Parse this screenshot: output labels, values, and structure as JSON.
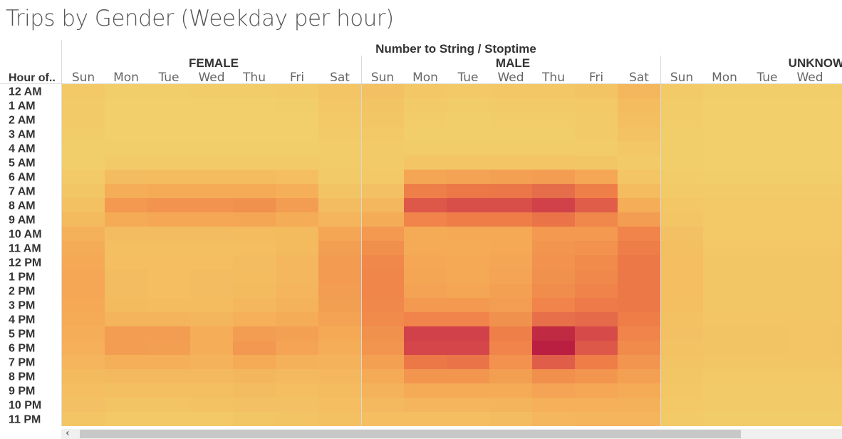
{
  "title": "Trips by Gender (Weekday per hour)",
  "header": {
    "column_field_label": "Number to String",
    "separator": "/",
    "column_field_label_2": "Stoptime",
    "row_field_label": "Hour of.."
  },
  "scroll": {
    "left_arrow": "‹"
  },
  "colors": {
    "scale_low": "#f2d06b",
    "scale_mid1": "#f5ab56",
    "scale_mid2": "#ef7f48",
    "scale_high1": "#d4464a",
    "scale_high2": "#b5173e",
    "panel_divider": "#d8d8d8"
  },
  "chart_data": {
    "type": "heatmap",
    "title": "Trips by Gender (Weekday per hour)",
    "xlabel": "Number to String / Stoptime",
    "ylabel": "Hour of..",
    "groups": [
      "FEMALE",
      "MALE",
      "UNKNOWN"
    ],
    "days": [
      "Sun",
      "Mon",
      "Tue",
      "Wed",
      "Thu",
      "Fri",
      "Sat"
    ],
    "hours": [
      "12 AM",
      "1 AM",
      "2 AM",
      "3 AM",
      "4 AM",
      "5 AM",
      "6 AM",
      "7 AM",
      "8 AM",
      "9 AM",
      "10 AM",
      "11 AM",
      "12 PM",
      "1 PM",
      "2 PM",
      "3 PM",
      "4 PM",
      "5 PM",
      "6 PM",
      "7 PM",
      "8 PM",
      "9 PM",
      "10 PM",
      "11 PM"
    ],
    "value_scale": [
      0,
      1
    ],
    "values": {
      "FEMALE": [
        [
          0.06,
          0.02,
          0.02,
          0.03,
          0.03,
          0.04,
          0.09
        ],
        [
          0.05,
          0.01,
          0.01,
          0.01,
          0.01,
          0.02,
          0.07
        ],
        [
          0.04,
          0.01,
          0.01,
          0.01,
          0.01,
          0.01,
          0.06
        ],
        [
          0.03,
          0.01,
          0.01,
          0.01,
          0.01,
          0.01,
          0.05
        ],
        [
          0.02,
          0.02,
          0.02,
          0.02,
          0.02,
          0.02,
          0.03
        ],
        [
          0.02,
          0.05,
          0.05,
          0.05,
          0.05,
          0.05,
          0.03
        ],
        [
          0.04,
          0.16,
          0.17,
          0.17,
          0.17,
          0.15,
          0.05
        ],
        [
          0.08,
          0.28,
          0.3,
          0.3,
          0.3,
          0.27,
          0.1
        ],
        [
          0.13,
          0.4,
          0.43,
          0.43,
          0.45,
          0.38,
          0.16
        ],
        [
          0.18,
          0.3,
          0.32,
          0.32,
          0.33,
          0.29,
          0.22
        ],
        [
          0.25,
          0.16,
          0.16,
          0.16,
          0.17,
          0.18,
          0.33
        ],
        [
          0.29,
          0.14,
          0.14,
          0.14,
          0.15,
          0.18,
          0.37
        ],
        [
          0.31,
          0.15,
          0.15,
          0.15,
          0.16,
          0.2,
          0.39
        ],
        [
          0.32,
          0.16,
          0.15,
          0.16,
          0.17,
          0.2,
          0.39
        ],
        [
          0.32,
          0.16,
          0.15,
          0.16,
          0.18,
          0.22,
          0.38
        ],
        [
          0.31,
          0.18,
          0.17,
          0.17,
          0.2,
          0.24,
          0.37
        ],
        [
          0.3,
          0.23,
          0.23,
          0.21,
          0.26,
          0.29,
          0.35
        ],
        [
          0.28,
          0.38,
          0.38,
          0.28,
          0.38,
          0.36,
          0.31
        ],
        [
          0.26,
          0.38,
          0.37,
          0.28,
          0.41,
          0.34,
          0.28
        ],
        [
          0.22,
          0.27,
          0.27,
          0.24,
          0.3,
          0.25,
          0.24
        ],
        [
          0.18,
          0.19,
          0.19,
          0.19,
          0.21,
          0.19,
          0.2
        ],
        [
          0.15,
          0.14,
          0.14,
          0.14,
          0.16,
          0.15,
          0.17
        ],
        [
          0.12,
          0.1,
          0.1,
          0.11,
          0.12,
          0.12,
          0.15
        ],
        [
          0.09,
          0.06,
          0.06,
          0.06,
          0.08,
          0.1,
          0.13
        ]
      ],
      "MALE": [
        [
          0.12,
          0.07,
          0.06,
          0.07,
          0.07,
          0.1,
          0.2
        ],
        [
          0.1,
          0.04,
          0.03,
          0.04,
          0.04,
          0.06,
          0.17
        ],
        [
          0.08,
          0.03,
          0.02,
          0.03,
          0.03,
          0.05,
          0.14
        ],
        [
          0.06,
          0.02,
          0.02,
          0.02,
          0.02,
          0.04,
          0.11
        ],
        [
          0.04,
          0.03,
          0.03,
          0.03,
          0.03,
          0.03,
          0.07
        ],
        [
          0.04,
          0.09,
          0.09,
          0.09,
          0.09,
          0.08,
          0.05
        ],
        [
          0.06,
          0.33,
          0.35,
          0.36,
          0.38,
          0.32,
          0.09
        ],
        [
          0.12,
          0.55,
          0.58,
          0.59,
          0.63,
          0.55,
          0.17
        ],
        [
          0.2,
          0.72,
          0.76,
          0.76,
          0.82,
          0.7,
          0.28
        ],
        [
          0.29,
          0.52,
          0.56,
          0.56,
          0.6,
          0.5,
          0.38
        ],
        [
          0.4,
          0.3,
          0.31,
          0.31,
          0.4,
          0.4,
          0.52
        ],
        [
          0.46,
          0.3,
          0.3,
          0.31,
          0.42,
          0.44,
          0.56
        ],
        [
          0.5,
          0.32,
          0.31,
          0.33,
          0.44,
          0.48,
          0.58
        ],
        [
          0.51,
          0.33,
          0.31,
          0.34,
          0.45,
          0.5,
          0.58
        ],
        [
          0.51,
          0.35,
          0.33,
          0.36,
          0.47,
          0.53,
          0.58
        ],
        [
          0.5,
          0.4,
          0.4,
          0.38,
          0.52,
          0.57,
          0.58
        ],
        [
          0.48,
          0.52,
          0.52,
          0.45,
          0.62,
          0.64,
          0.56
        ],
        [
          0.45,
          0.82,
          0.82,
          0.55,
          0.92,
          0.78,
          0.52
        ],
        [
          0.42,
          0.8,
          0.8,
          0.52,
          0.97,
          0.72,
          0.48
        ],
        [
          0.36,
          0.58,
          0.6,
          0.44,
          0.7,
          0.56,
          0.42
        ],
        [
          0.3,
          0.42,
          0.42,
          0.37,
          0.46,
          0.42,
          0.36
        ],
        [
          0.24,
          0.3,
          0.3,
          0.3,
          0.34,
          0.32,
          0.3
        ],
        [
          0.19,
          0.22,
          0.22,
          0.23,
          0.26,
          0.26,
          0.25
        ],
        [
          0.15,
          0.15,
          0.15,
          0.16,
          0.2,
          0.22,
          0.22
        ]
      ],
      "UNKNOWN": [
        [
          0.04,
          0.02,
          0.02,
          0.02,
          0.02
        ],
        [
          0.03,
          0.01,
          0.01,
          0.01,
          0.01
        ],
        [
          0.03,
          0.01,
          0.01,
          0.01,
          0.01
        ],
        [
          0.02,
          0.01,
          0.01,
          0.01,
          0.01
        ],
        [
          0.02,
          0.01,
          0.01,
          0.01,
          0.01
        ],
        [
          0.02,
          0.01,
          0.01,
          0.01,
          0.01
        ],
        [
          0.03,
          0.02,
          0.02,
          0.02,
          0.02
        ],
        [
          0.05,
          0.04,
          0.04,
          0.04,
          0.04
        ],
        [
          0.07,
          0.06,
          0.06,
          0.06,
          0.06
        ],
        [
          0.09,
          0.06,
          0.06,
          0.06,
          0.06
        ],
        [
          0.12,
          0.06,
          0.06,
          0.06,
          0.06
        ],
        [
          0.14,
          0.07,
          0.07,
          0.07,
          0.07
        ],
        [
          0.15,
          0.08,
          0.08,
          0.08,
          0.08
        ],
        [
          0.15,
          0.08,
          0.08,
          0.08,
          0.08
        ],
        [
          0.15,
          0.08,
          0.08,
          0.08,
          0.08
        ],
        [
          0.14,
          0.08,
          0.08,
          0.08,
          0.08
        ],
        [
          0.13,
          0.09,
          0.09,
          0.08,
          0.09
        ],
        [
          0.12,
          0.1,
          0.1,
          0.09,
          0.1
        ],
        [
          0.11,
          0.1,
          0.1,
          0.09,
          0.1
        ],
        [
          0.1,
          0.08,
          0.08,
          0.08,
          0.08
        ],
        [
          0.08,
          0.06,
          0.06,
          0.06,
          0.06
        ],
        [
          0.07,
          0.05,
          0.05,
          0.05,
          0.05
        ],
        [
          0.06,
          0.04,
          0.04,
          0.04,
          0.04
        ],
        [
          0.05,
          0.03,
          0.03,
          0.03,
          0.03
        ]
      ]
    },
    "visible_days": {
      "FEMALE": [
        "Sun",
        "Mon",
        "Tue",
        "Wed",
        "Thu",
        "Fri",
        "Sat"
      ],
      "MALE": [
        "Sun",
        "Mon",
        "Tue",
        "Wed",
        "Thu",
        "Fri",
        "Sat"
      ],
      "UNKNOWN": [
        "Sun",
        "Mon",
        "Tue",
        "Wed",
        "Th"
      ]
    },
    "grid": false,
    "legend": "none"
  }
}
